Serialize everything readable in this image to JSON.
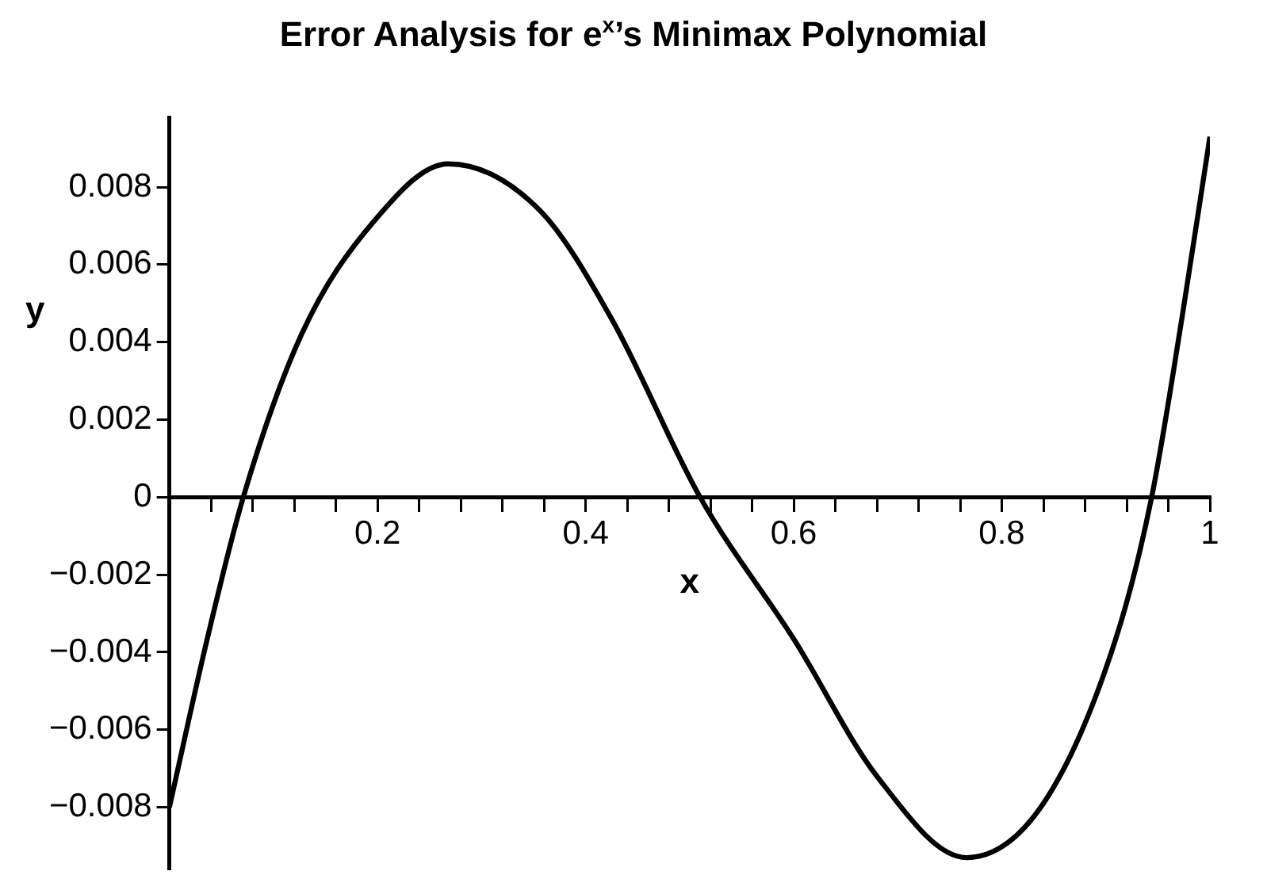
{
  "chart_data": {
    "type": "line",
    "title": "Error Analysis for e$^{x}$’s Minimax Polynomial",
    "xlabel": "x",
    "ylabel": "y",
    "xlim": [
      0,
      1
    ],
    "ylim": [
      -0.0096,
      0.0098
    ],
    "xticks": [
      {
        "value": 0.04,
        "label": null
      },
      {
        "value": 0.08,
        "label": null
      },
      {
        "value": 0.12,
        "label": null
      },
      {
        "value": 0.16,
        "label": null
      },
      {
        "value": 0.2,
        "label": "0.2"
      },
      {
        "value": 0.24,
        "label": null
      },
      {
        "value": 0.28,
        "label": null
      },
      {
        "value": 0.32,
        "label": null
      },
      {
        "value": 0.36,
        "label": null
      },
      {
        "value": 0.4,
        "label": "0.4"
      },
      {
        "value": 0.44,
        "label": null
      },
      {
        "value": 0.48,
        "label": null
      },
      {
        "value": 0.52,
        "label": null
      },
      {
        "value": 0.56,
        "label": null
      },
      {
        "value": 0.6,
        "label": "0.6"
      },
      {
        "value": 0.64,
        "label": null
      },
      {
        "value": 0.68,
        "label": null
      },
      {
        "value": 0.72,
        "label": null
      },
      {
        "value": 0.76,
        "label": null
      },
      {
        "value": 0.8,
        "label": "0.8"
      },
      {
        "value": 0.84,
        "label": null
      },
      {
        "value": 0.88,
        "label": null
      },
      {
        "value": 0.92,
        "label": null
      },
      {
        "value": 0.96,
        "label": null
      },
      {
        "value": 1,
        "label": "1"
      }
    ],
    "yticks": [
      {
        "value": -0.008,
        "label": "−0.008"
      },
      {
        "value": -0.006,
        "label": "−0.006"
      },
      {
        "value": -0.004,
        "label": "−0.004"
      },
      {
        "value": -0.002,
        "label": "−0.002"
      },
      {
        "value": 0,
        "label": "0"
      },
      {
        "value": 0.002,
        "label": "0.002"
      },
      {
        "value": 0.004,
        "label": "0.004"
      },
      {
        "value": 0.006,
        "label": "0.006"
      },
      {
        "value": 0.008,
        "label": "0.008"
      }
    ],
    "marker": "none",
    "line_style": "solid",
    "series": [
      {
        "color": "#000000",
        "x": [
          0,
          0.036,
          0.071,
          0.127,
          0.196,
          0.268,
          0.356,
          0.425,
          0.51,
          0.601,
          0.68,
          0.766,
          0.84,
          0.909,
          0.944,
          0.973,
          1
        ],
        "values": [
          -0.008,
          -0.0037,
          0,
          0.0042,
          0.0071,
          0.0086,
          0.0074,
          0.0046,
          0,
          -0.0037,
          -0.0072,
          -0.0093,
          -0.0079,
          -0.0037,
          0,
          0.0046,
          0.0093
        ]
      }
    ]
  }
}
